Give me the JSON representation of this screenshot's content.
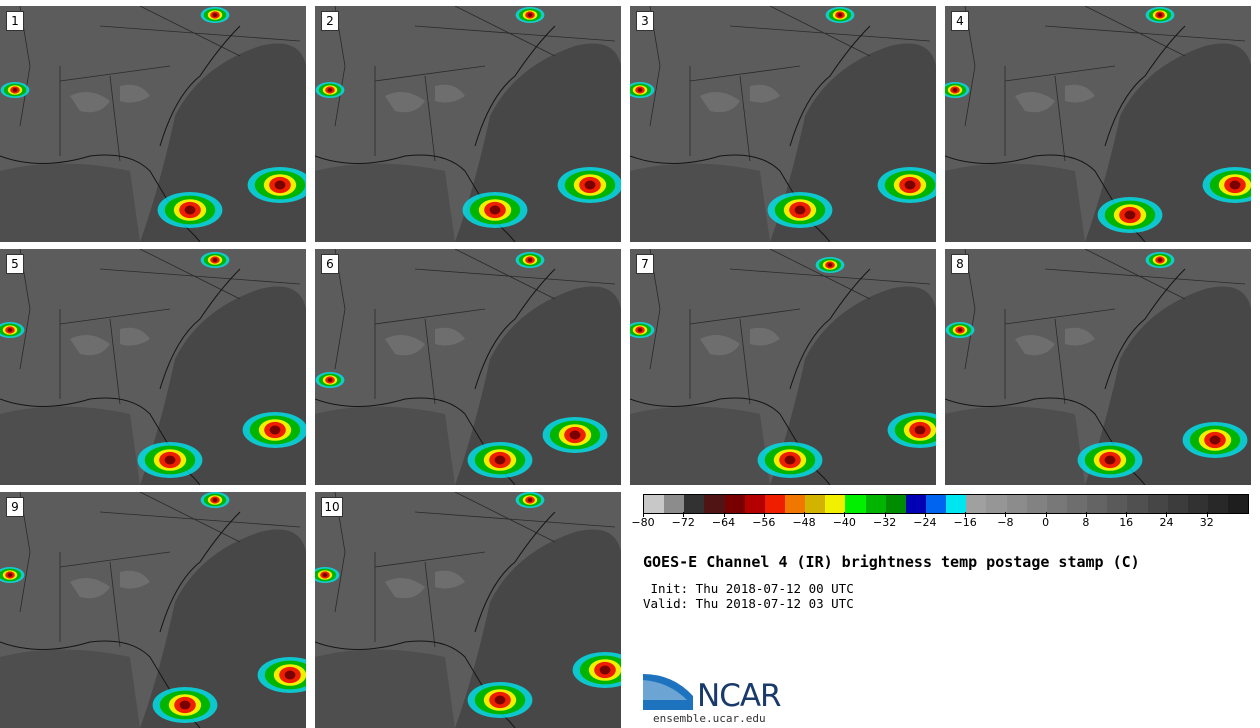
{
  "panels": [
    {
      "label": "1"
    },
    {
      "label": "2"
    },
    {
      "label": "3"
    },
    {
      "label": "4"
    },
    {
      "label": "5"
    },
    {
      "label": "6"
    },
    {
      "label": "7"
    },
    {
      "label": "8"
    },
    {
      "label": "9"
    },
    {
      "label": "10"
    }
  ],
  "colorbar": {
    "colors": [
      "#c8c8c8",
      "#8c8c8c",
      "#323232",
      "#501414",
      "#780000",
      "#b40000",
      "#f01e00",
      "#f07800",
      "#d2b400",
      "#f0f000",
      "#00f000",
      "#00b400",
      "#008c00",
      "#0000b4",
      "#0064f0",
      "#00e6f0",
      "#a0a0a0",
      "#969696",
      "#8c8c8c",
      "#828282",
      "#787878",
      "#6e6e6e",
      "#646464",
      "#5a5a5a",
      "#505050",
      "#464646",
      "#3c3c3c",
      "#323232",
      "#282828",
      "#1e1e1e"
    ],
    "tick_values": [
      "−80",
      "−72",
      "−64",
      "−56",
      "−48",
      "−40",
      "−32",
      "−24",
      "−16",
      "−8",
      "0",
      "8",
      "16",
      "24",
      "32"
    ],
    "tick_positions": [
      -80,
      -72,
      -64,
      -56,
      -48,
      -40,
      -32,
      -24,
      -16,
      -8,
      0,
      8,
      16,
      24,
      32
    ],
    "min": -80,
    "max": 40
  },
  "title": "GOES-E Channel 4 (IR) brightness temp postage stamp (C)",
  "init": " Init: Thu 2018-07-12 00 UTC",
  "valid": "Valid: Thu 2018-07-12 03 UTC",
  "logo_text": "NCAR",
  "site": "ensemble.ucar.edu"
}
